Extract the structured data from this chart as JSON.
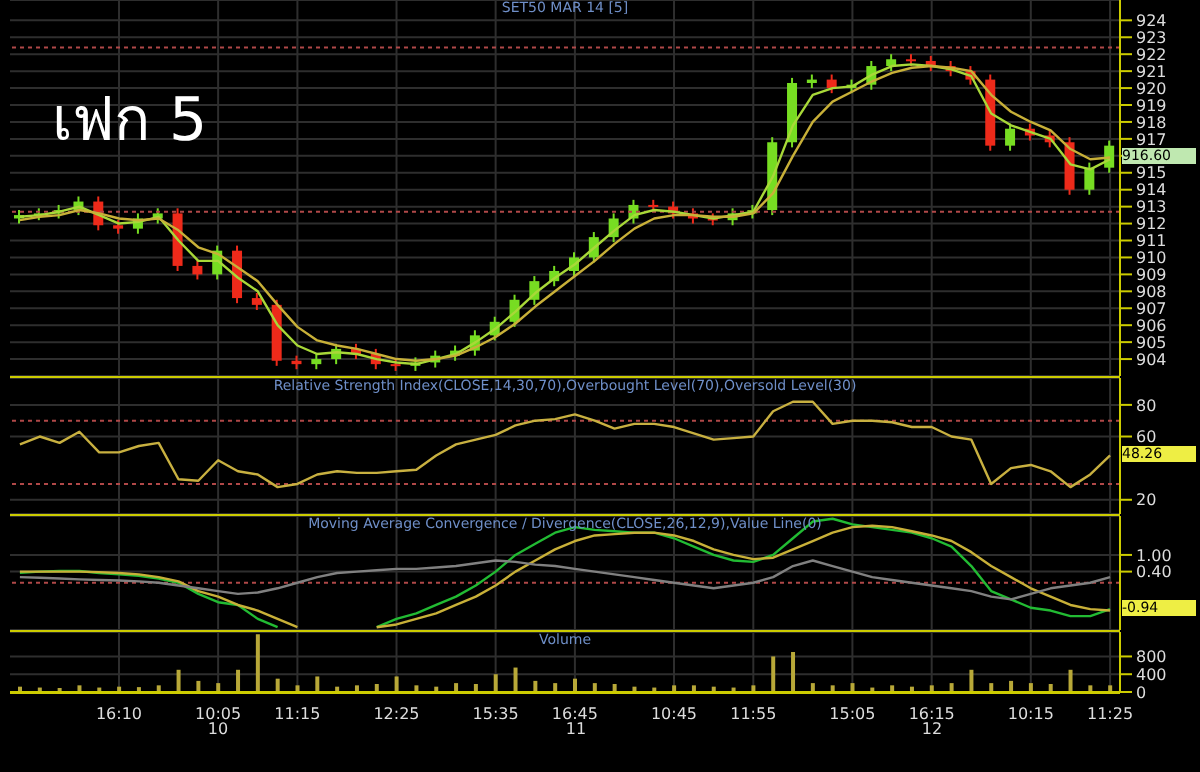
{
  "chart_data": [
    {
      "type": "candlestick",
      "title": "SET50 MAR 14  [5]",
      "annotations": [
        "เฟก 5",
        "916.60"
      ],
      "categories": [
        null,
        null,
        null,
        null,
        null,
        null,
        null,
        null,
        null,
        null,
        null,
        null,
        null,
        null,
        null,
        null,
        null,
        null,
        null,
        null,
        null,
        null,
        null,
        null,
        null,
        null,
        null,
        null,
        null,
        null,
        null,
        null,
        null,
        null,
        null,
        null,
        null,
        null,
        null,
        null,
        null,
        null,
        null,
        null,
        null,
        null,
        null,
        null,
        null,
        null,
        null,
        null,
        null,
        null,
        null,
        null
      ],
      "ohlc": [
        [
          912.3,
          912.8,
          912.0,
          912.5
        ],
        [
          912.5,
          912.9,
          912.2,
          912.6
        ],
        [
          912.6,
          913.1,
          912.3,
          912.8
        ],
        [
          912.8,
          913.6,
          912.5,
          913.3
        ],
        [
          913.3,
          913.6,
          911.6,
          911.9
        ],
        [
          911.9,
          912.2,
          911.4,
          911.7
        ],
        [
          911.7,
          912.6,
          911.4,
          912.3
        ],
        [
          912.3,
          912.9,
          912.0,
          912.6
        ],
        [
          912.6,
          912.9,
          909.2,
          909.5
        ],
        [
          909.5,
          909.8,
          908.7,
          909.0
        ],
        [
          909.0,
          910.7,
          908.7,
          910.4
        ],
        [
          910.4,
          910.7,
          907.3,
          907.6
        ],
        [
          907.6,
          907.9,
          906.9,
          907.2
        ],
        [
          907.2,
          907.5,
          903.6,
          903.9
        ],
        [
          903.9,
          904.2,
          903.4,
          903.7
        ],
        [
          903.7,
          904.3,
          903.4,
          904.0
        ],
        [
          904.0,
          904.9,
          903.7,
          904.6
        ],
        [
          904.6,
          904.9,
          904.0,
          904.3
        ],
        [
          904.3,
          904.6,
          903.4,
          903.7
        ],
        [
          903.7,
          904.0,
          903.3,
          903.6
        ],
        [
          903.6,
          904.1,
          903.3,
          903.8
        ],
        [
          903.8,
          904.5,
          903.5,
          904.2
        ],
        [
          904.2,
          904.8,
          903.9,
          904.5
        ],
        [
          904.5,
          905.7,
          904.2,
          905.4
        ],
        [
          905.4,
          906.5,
          905.1,
          906.2
        ],
        [
          906.2,
          907.8,
          905.9,
          907.5
        ],
        [
          907.5,
          908.9,
          907.2,
          908.6
        ],
        [
          908.6,
          909.5,
          908.3,
          909.2
        ],
        [
          909.2,
          910.3,
          908.9,
          910.0
        ],
        [
          910.0,
          911.5,
          909.7,
          911.2
        ],
        [
          911.2,
          912.6,
          910.9,
          912.3
        ],
        [
          912.3,
          913.4,
          912.0,
          913.1
        ],
        [
          913.1,
          913.4,
          912.7,
          913.0
        ],
        [
          913.0,
          913.3,
          912.3,
          912.6
        ],
        [
          912.6,
          912.9,
          912.0,
          912.3
        ],
        [
          912.3,
          912.6,
          911.9,
          912.2
        ],
        [
          912.2,
          912.9,
          911.9,
          912.6
        ],
        [
          912.6,
          913.1,
          912.3,
          912.8
        ],
        [
          912.8,
          917.1,
          912.5,
          916.8
        ],
        [
          916.8,
          920.6,
          916.5,
          920.3
        ],
        [
          920.3,
          920.8,
          920.0,
          920.5
        ],
        [
          920.5,
          920.8,
          919.7,
          920.0
        ],
        [
          920.0,
          920.5,
          919.7,
          920.2
        ],
        [
          920.2,
          921.6,
          919.9,
          921.3
        ],
        [
          921.3,
          922.0,
          921.0,
          921.7
        ],
        [
          921.7,
          922.0,
          921.3,
          921.6
        ],
        [
          921.6,
          921.9,
          921.0,
          921.3
        ],
        [
          921.3,
          921.6,
          920.7,
          921.0
        ],
        [
          921.0,
          921.3,
          920.2,
          920.5
        ],
        [
          920.5,
          920.8,
          916.3,
          916.6
        ],
        [
          916.6,
          917.9,
          916.3,
          917.6
        ],
        [
          917.6,
          917.9,
          916.9,
          917.2
        ],
        [
          917.2,
          917.5,
          916.5,
          916.8
        ],
        [
          916.8,
          917.1,
          913.7,
          914.0
        ],
        [
          914.0,
          915.6,
          913.7,
          915.3
        ],
        [
          915.3,
          916.9,
          915.0,
          916.6
        ]
      ],
      "colors": [
        "#77dd22",
        "#77dd22",
        "#77dd22",
        "#77dd22",
        "#ee2a1a",
        "#ee2a1a",
        "#77dd22",
        "#77dd22",
        "#ee2a1a",
        "#ee2a1a",
        "#77dd22",
        "#ee2a1a",
        "#ee2a1a",
        "#ee2a1a",
        "#ee2a1a",
        "#77dd22",
        "#77dd22",
        "#ee2a1a",
        "#ee2a1a",
        "#ee2a1a",
        "#77dd22",
        "#77dd22",
        "#77dd22",
        "#77dd22",
        "#77dd22",
        "#77dd22",
        "#77dd22",
        "#77dd22",
        "#77dd22",
        "#77dd22",
        "#77dd22",
        "#77dd22",
        "#ee2a1a",
        "#ee2a1a",
        "#ee2a1a",
        "#ee2a1a",
        "#77dd22",
        "#77dd22",
        "#77dd22",
        "#77dd22",
        "#77dd22",
        "#ee2a1a",
        "#77dd22",
        "#77dd22",
        "#77dd22",
        "#ee2a1a",
        "#ee2a1a",
        "#ee2a1a",
        "#ee2a1a",
        "#ee2a1a",
        "#77dd22",
        "#ee2a1a",
        "#ee2a1a",
        "#ee2a1a",
        "#77dd22",
        "#77dd22"
      ],
      "series": [
        {
          "type": "line",
          "color": "#a8d838",
          "values": [
            912.4,
            912.5,
            912.7,
            913.0,
            912.5,
            912.0,
            912.1,
            912.4,
            911.0,
            909.8,
            909.8,
            908.8,
            908.0,
            906.0,
            904.8,
            904.3,
            904.4,
            904.3,
            904.0,
            903.8,
            903.7,
            904.0,
            904.3,
            905.0,
            905.8,
            906.8,
            907.9,
            908.8,
            909.6,
            910.6,
            911.6,
            912.5,
            912.8,
            912.7,
            912.5,
            912.3,
            912.5,
            912.7,
            914.8,
            917.8,
            919.6,
            920.0,
            920.1,
            920.8,
            921.3,
            921.4,
            921.3,
            921.1,
            920.7,
            918.5,
            917.8,
            917.4,
            917.0,
            915.5,
            915.2,
            915.8
          ]
        },
        {
          "type": "line",
          "color": "#c8b038",
          "values": [
            912.2,
            912.4,
            912.5,
            912.8,
            912.6,
            912.3,
            912.2,
            912.3,
            911.6,
            910.6,
            910.2,
            909.4,
            908.6,
            907.2,
            905.9,
            905.1,
            904.8,
            904.6,
            904.3,
            904.0,
            903.9,
            904.0,
            904.2,
            904.7,
            905.3,
            906.1,
            907.1,
            908.0,
            908.9,
            909.8,
            910.8,
            911.7,
            912.3,
            912.5,
            912.5,
            912.4,
            912.4,
            912.6,
            913.8,
            916.0,
            918.0,
            919.2,
            919.8,
            920.4,
            920.9,
            921.2,
            921.3,
            921.2,
            921.0,
            919.6,
            918.6,
            918.0,
            917.5,
            916.4,
            915.8,
            915.9
          ]
        }
      ],
      "ylim": [
        903.0,
        925.2
      ],
      "yticks": [
        904,
        905,
        906,
        907,
        908,
        909,
        910,
        911,
        912,
        913,
        914,
        915,
        {
          "value": 916,
          "label": null
        },
        917,
        918,
        919,
        920,
        921,
        922,
        923,
        924
      ],
      "ref_lines": [
        {
          "axis": "y",
          "value": 922.4,
          "color": "#b04848",
          "line_style": "dotted"
        },
        {
          "axis": "y",
          "value": 912.7,
          "color": "#b04848",
          "line_style": "dotted"
        }
      ],
      "grid": true,
      "tick_labels": "y"
    },
    {
      "type": "line",
      "title": "Relative Strength Index(CLOSE,14,30,70),Overbought Level(70),Oversold Level(30)",
      "annotations": [
        "48.26"
      ],
      "categories": [
        null,
        null,
        null,
        null,
        null,
        null,
        null,
        null,
        null,
        null,
        null,
        null,
        null,
        null,
        null,
        null,
        null,
        null,
        null,
        null,
        null,
        null,
        null,
        null,
        null,
        null,
        null,
        null,
        null,
        null,
        null,
        null,
        null,
        null,
        null,
        null,
        null,
        null,
        null,
        null,
        null,
        null,
        null,
        null,
        null,
        null,
        null,
        null,
        null,
        null,
        null,
        null,
        null,
        null,
        null,
        null
      ],
      "color": "#c8b040",
      "values": [
        55,
        60,
        56,
        63,
        50,
        50,
        54,
        56,
        33,
        32,
        45,
        38,
        36,
        28,
        30,
        36,
        38,
        37,
        37,
        38,
        39,
        48,
        55,
        58,
        61,
        67,
        70,
        71,
        74,
        70,
        65,
        68,
        68,
        66,
        62,
        58,
        59,
        60,
        76,
        82,
        82,
        68,
        70,
        70,
        69,
        66,
        66,
        60,
        58,
        30,
        40,
        42,
        38,
        28,
        36,
        48
      ],
      "ylim": [
        11,
        97
      ],
      "yticks": [
        20,
        60,
        80
      ],
      "ref_lines": [
        {
          "axis": "y",
          "value": 70,
          "color": "#b04848",
          "line_style": "dotted"
        },
        {
          "axis": "y",
          "value": 30,
          "color": "#b04848",
          "line_style": "dotted"
        }
      ],
      "grid": true,
      "tick_labels": "y"
    },
    {
      "type": "line",
      "title": "Moving Average Convergence / Divergence(CLOSE,26,12,9),Value Line(0)",
      "annotations": [
        "-0.94"
      ],
      "categories": [
        null,
        null,
        null,
        null,
        null,
        null,
        null,
        null,
        null,
        null,
        null,
        null,
        null,
        null,
        null,
        null,
        null,
        null,
        null,
        null,
        null,
        null,
        null,
        null,
        null,
        null,
        null,
        null,
        null,
        null,
        null,
        null,
        null,
        null,
        null,
        null,
        null,
        null,
        null,
        null,
        null,
        null,
        null,
        null,
        null,
        null,
        null,
        null,
        null,
        null,
        null,
        null,
        null,
        null,
        null,
        null
      ],
      "series": [
        {
          "color": "#22bb33",
          "values": [
            0.36,
            0.4,
            0.42,
            0.42,
            0.35,
            0.3,
            0.25,
            0.15,
            0,
            -0.4,
            -0.7,
            -0.8,
            -1.3,
            -1.6,
            null,
            null,
            null,
            null,
            -1.6,
            -1.3,
            -1.1,
            -0.8,
            -0.5,
            -0.1,
            0.4,
            1.0,
            1.4,
            1.8,
            2.0,
            1.9,
            1.85,
            1.8,
            1.8,
            1.6,
            1.3,
            1.0,
            0.8,
            0.75,
            1.0,
            1.6,
            2.2,
            2.3,
            2.1,
            2.0,
            1.9,
            1.8,
            1.6,
            1.3,
            0.6,
            -0.3,
            -0.6,
            -0.9,
            -1.0,
            -1.2,
            -1.2,
            -0.95
          ]
        },
        {
          "color": "#c8b038",
          "values": [
            0.4,
            0.4,
            0.4,
            0.4,
            0.38,
            0.35,
            0.3,
            0.2,
            0.05,
            -0.3,
            -0.5,
            -0.8,
            -1.0,
            -1.3,
            -1.6,
            null,
            null,
            null,
            -1.6,
            -1.5,
            -1.3,
            -1.1,
            -0.8,
            -0.5,
            -0.1,
            0.4,
            0.8,
            1.2,
            1.5,
            1.7,
            1.75,
            1.8,
            1.8,
            1.7,
            1.5,
            1.2,
            1.0,
            0.85,
            0.9,
            1.2,
            1.5,
            1.8,
            2.0,
            2.05,
            2.0,
            1.85,
            1.7,
            1.5,
            1.1,
            0.6,
            0.2,
            -0.2,
            -0.5,
            -0.8,
            -0.95,
            -1.0
          ]
        },
        {
          "color": "#808080",
          "values": [
            0.2,
            0.18,
            0.15,
            0.12,
            0.1,
            0.08,
            0.05,
            0,
            -0.1,
            -0.2,
            -0.3,
            -0.4,
            -0.35,
            -0.2,
            0,
            0.2,
            0.35,
            0.4,
            0.45,
            0.5,
            0.5,
            0.55,
            0.6,
            0.7,
            0.8,
            0.75,
            0.65,
            0.6,
            0.5,
            0.4,
            0.3,
            0.2,
            0.1,
            0,
            -0.1,
            -0.2,
            -0.1,
            0,
            0.2,
            0.6,
            0.8,
            0.6,
            0.4,
            0.2,
            0.1,
            0,
            -0.1,
            -0.2,
            -0.3,
            -0.5,
            -0.6,
            -0.4,
            -0.2,
            -0.1,
            0,
            0.2
          ]
        }
      ],
      "ylim": [
        -1.7,
        2.4
      ],
      "yticks": [
        {
          "value": 1,
          "label": "1.00"
        },
        {
          "value": 0.4,
          "label": "0.40"
        }
      ],
      "ref_lines": [
        {
          "axis": "y",
          "value": 0,
          "color": "#b04848",
          "line_style": "dotted"
        }
      ],
      "grid": true,
      "tick_labels": "y"
    },
    {
      "type": "bar",
      "title": "Volume",
      "annotations": [
        "10",
        "11",
        "12"
      ],
      "categories": [
        null,
        null,
        null,
        null,
        null,
        "16:10",
        null,
        null,
        null,
        null,
        "10:05",
        null,
        null,
        null,
        "11:15",
        null,
        null,
        null,
        null,
        "12:25",
        null,
        null,
        null,
        null,
        "15:35",
        null,
        null,
        null,
        "16:45",
        null,
        null,
        null,
        null,
        "10:45",
        null,
        null,
        null,
        "11:55",
        null,
        null,
        null,
        null,
        "15:05",
        null,
        null,
        null,
        "16:15",
        null,
        null,
        null,
        null,
        "10:15",
        null,
        null,
        null,
        "11:25"
      ],
      "color": "#b8a838",
      "values": [
        120,
        100,
        90,
        150,
        100,
        120,
        110,
        150,
        500,
        250,
        200,
        500,
        1300,
        300,
        150,
        350,
        120,
        150,
        180,
        350,
        150,
        120,
        200,
        180,
        400,
        550,
        250,
        200,
        300,
        200,
        180,
        120,
        100,
        150,
        150,
        120,
        100,
        150,
        800,
        900,
        200,
        150,
        200,
        100,
        150,
        120,
        150,
        200,
        500,
        200,
        250,
        200,
        180,
        500,
        150,
        150
      ],
      "ylim": [
        0,
        1350
      ],
      "yticks": [
        0,
        400,
        800
      ],
      "grid": true
    }
  ]
}
